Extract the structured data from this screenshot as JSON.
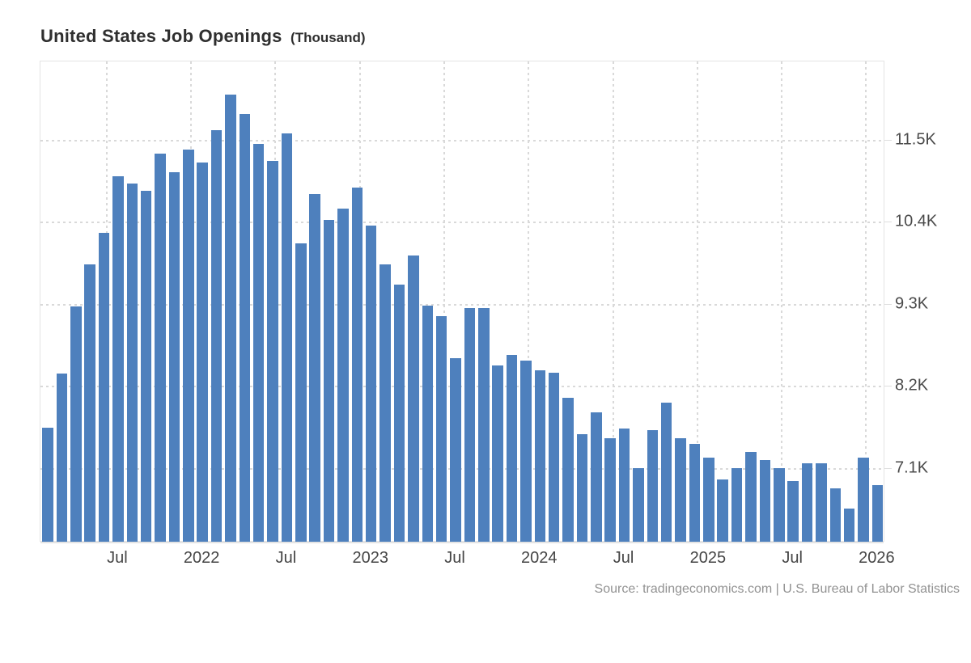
{
  "header": {
    "title": "United States Job Openings",
    "unit_suffix": "(Thousand)"
  },
  "source": {
    "text": "Source: tradingeconomics.com | U.S. Bureau of Labor Statistics"
  },
  "colors": {
    "bar": "#4e80bd",
    "gridline": "#d9d9d9",
    "frame": "#e4e4e4",
    "title_text": "#2f2f2f",
    "tick_text": "#4a4a4a",
    "source_text": "#929292",
    "background": "#ffffff"
  },
  "chart_data": {
    "type": "bar",
    "title": "United States Job Openings",
    "unit": "Thousand",
    "legend": "none",
    "grid": "dotted",
    "ylim": [
      6110,
      12560
    ],
    "x": [
      "Feb 2021",
      "Mar 2021",
      "Apr 2021",
      "May 2021",
      "Jun 2021",
      "Jul 2021",
      "Aug 2021",
      "Sep 2021",
      "Oct 2021",
      "Nov 2021",
      "Dec 2021",
      "Jan 2022",
      "Feb 2022",
      "Mar 2022",
      "Apr 2022",
      "May 2022",
      "Jun 2022",
      "Jul 2022",
      "Aug 2022",
      "Sep 2022",
      "Oct 2022",
      "Nov 2022",
      "Dec 2022",
      "Jan 2023",
      "Feb 2023",
      "Mar 2023",
      "Apr 2023",
      "May 2023",
      "Jun 2023",
      "Jul 2023",
      "Aug 2023",
      "Sep 2023",
      "Oct 2023",
      "Nov 2023",
      "Dec 2023",
      "Jan 2024",
      "Feb 2024",
      "Mar 2024",
      "Apr 2024",
      "May 2024",
      "Jun 2024",
      "Jul 2024",
      "Aug 2024",
      "Sep 2024",
      "Oct 2024",
      "Nov 2024",
      "Dec 2024",
      "Jan 2025",
      "Feb 2025",
      "Mar 2025",
      "Apr 2025",
      "May 2025",
      "Jun 2025",
      "Jul 2025",
      "Aug 2025",
      "Sep 2025",
      "Oct 2025",
      "Nov 2025",
      "Dec 2025",
      "Jan 2026"
    ],
    "values": [
      7640,
      8360,
      9270,
      9830,
      10250,
      11010,
      10910,
      10820,
      11310,
      11060,
      11370,
      11200,
      11630,
      12110,
      11840,
      11440,
      11220,
      11580,
      10110,
      10770,
      10430,
      10580,
      10860,
      10350,
      9830,
      9560,
      9950,
      9280,
      9140,
      8570,
      9240,
      9240,
      8470,
      8610,
      8540,
      8410,
      8380,
      8040,
      7550,
      7840,
      7500,
      7630,
      7100,
      7610,
      7980,
      7500,
      7420,
      7240,
      6940,
      7100,
      7310,
      7200,
      7100,
      6920,
      7160,
      7160,
      6830,
      6550,
      7240,
      6870
    ],
    "y_ticks": [
      {
        "value": 7100,
        "label": "7.1K"
      },
      {
        "value": 8200,
        "label": "8.2K"
      },
      {
        "value": 9300,
        "label": "9.3K"
      },
      {
        "value": 10400,
        "label": "10.4K"
      },
      {
        "value": 11500,
        "label": "11.5K"
      }
    ],
    "x_tick_labels": [
      {
        "index": 5,
        "label": "Jul"
      },
      {
        "index": 11,
        "label": "2022"
      },
      {
        "index": 17,
        "label": "Jul"
      },
      {
        "index": 23,
        "label": "2023"
      },
      {
        "index": 29,
        "label": "Jul"
      },
      {
        "index": 35,
        "label": "2024"
      },
      {
        "index": 41,
        "label": "Jul"
      },
      {
        "index": 47,
        "label": "2025"
      },
      {
        "index": 53,
        "label": "Jul"
      },
      {
        "index": 59,
        "label": "2026"
      }
    ]
  }
}
